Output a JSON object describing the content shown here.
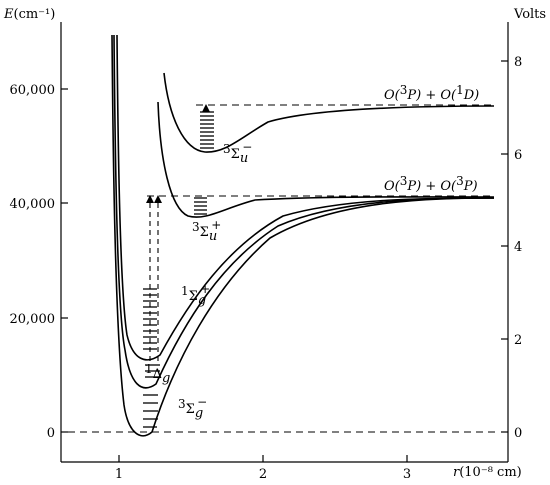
{
  "y_axis_left": {
    "label_symbol": "E",
    "label_unit": "(cm⁻¹)",
    "ticks": [
      "0",
      "20,000",
      "40,000",
      "60,000"
    ]
  },
  "y_axis_right": {
    "label": "Volts",
    "ticks": [
      "0",
      "2",
      "4",
      "6",
      "8"
    ]
  },
  "x_axis": {
    "label_symbol": "r",
    "label_unit": "(10⁻⁸ cm)",
    "ticks": [
      "1",
      "2",
      "3"
    ]
  },
  "states": {
    "s3sigma_g_minus": {
      "sup": "3",
      "sym": "Σ",
      "sub": "g",
      "sign": "−"
    },
    "s1delta_g": {
      "sup": "1",
      "sym": "Δ",
      "sub": "g",
      "sign": ""
    },
    "s1sigma_g_plus": {
      "sup": "1",
      "sym": "Σ",
      "sub": "g",
      "sign": "+"
    },
    "s3sigma_u_plus": {
      "sup": "3",
      "sym": "Σ",
      "sub": "u",
      "sign": "+"
    },
    "s3sigma_u_minus": {
      "sup": "3",
      "sym": "Σ",
      "sub": "u",
      "sign": "−"
    }
  },
  "limits": {
    "upper": {
      "a": "O(",
      "a_sup": "3",
      "a_term": "P) + O(",
      "b_sup": "1",
      "b_term": "D)"
    },
    "lower": {
      "a": "O(",
      "a_sup": "3",
      "a_term": "P) + O(",
      "b_sup": "3",
      "b_term": "P)"
    }
  }
}
